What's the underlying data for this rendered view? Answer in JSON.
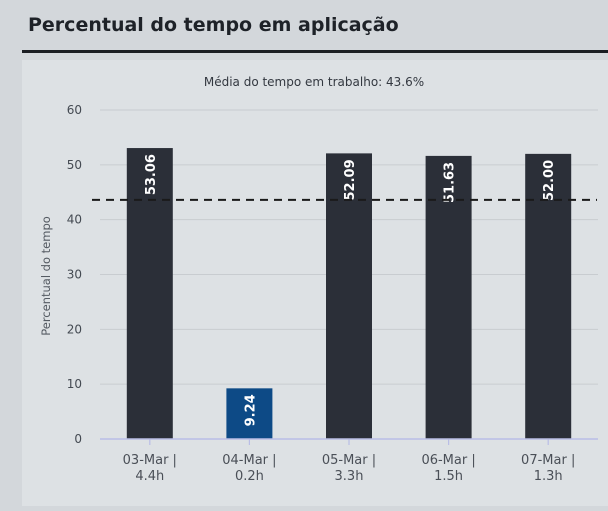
{
  "widget": {
    "title": "Percentual do tempo em aplicação"
  },
  "colors": {
    "bar": "#2b2f38",
    "bar_low": "#0d4a86",
    "mean_line": "#1a1a1a",
    "grid": "#c8ccd0",
    "axis": "#b9bde6"
  },
  "chart_data": {
    "type": "bar",
    "subtitle": "Média do tempo em trabalho: 43.6%",
    "ylabel": "Percentual do tempo",
    "xlabel": "",
    "ylim": [
      0,
      60
    ],
    "yticks": [
      0,
      10,
      20,
      30,
      40,
      50,
      60
    ],
    "categories": [
      [
        "03-Mar |",
        "4.4h"
      ],
      [
        "04-Mar |",
        "0.2h"
      ],
      [
        "05-Mar |",
        "3.3h"
      ],
      [
        "06-Mar |",
        "1.5h"
      ],
      [
        "07-Mar |",
        "1.3h"
      ]
    ],
    "values": [
      53.06,
      9.24,
      52.09,
      51.63,
      52.0
    ],
    "labels": [
      "53.06",
      "9.24",
      "52.09",
      "51.63",
      "52.00"
    ],
    "mean": 43.6,
    "grid": true,
    "legend": "none"
  }
}
